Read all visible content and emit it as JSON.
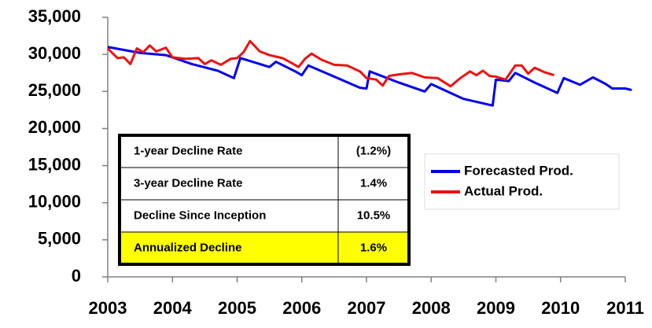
{
  "chart_data": {
    "type": "line",
    "xlim": [
      2003,
      2011
    ],
    "xticks": [
      2003,
      2004,
      2005,
      2006,
      2007,
      2008,
      2009,
      2010,
      2011
    ],
    "ylim": [
      0,
      35000
    ],
    "yticks": [
      0,
      {
        "value": 5000,
        "label": "5,000"
      },
      {
        "value": 10000,
        "label": "10,000"
      },
      {
        "value": 15000,
        "label": "15,000"
      },
      {
        "value": 20000,
        "label": "20,000"
      },
      {
        "value": 25000,
        "label": "25,000"
      },
      {
        "value": 30000,
        "label": "30,000"
      },
      {
        "value": 35000,
        "label": "35,000"
      }
    ],
    "grid": false,
    "legend": "right",
    "series": [
      {
        "name": "Forecasted Prod.",
        "color": "#0000ee",
        "x": [
          2003.0,
          2003.5,
          2003.9,
          2004.3,
          2004.7,
          2004.95,
          2005.05,
          2005.5,
          2005.6,
          2005.9,
          2006.0,
          2006.1,
          2006.5,
          2006.9,
          2007.0,
          2007.05,
          2007.5,
          2007.9,
          2008.0,
          2008.5,
          2008.95,
          2009.0,
          2009.2,
          2009.3,
          2009.6,
          2009.95,
          2010.05,
          2010.3,
          2010.5,
          2010.7,
          2010.8,
          2011.0,
          2011.1
        ],
        "values": [
          31000,
          30200,
          29900,
          28700,
          27800,
          26800,
          29500,
          28300,
          29000,
          27700,
          27200,
          28500,
          27000,
          25500,
          25400,
          27700,
          26200,
          25000,
          26000,
          24000,
          23100,
          26600,
          26400,
          27500,
          26200,
          24800,
          26800,
          25900,
          26900,
          26000,
          25400,
          25400,
          25200
        ]
      },
      {
        "name": "Actual Prod.",
        "color": "#ee1111",
        "x": [
          2003.0,
          2003.15,
          2003.25,
          2003.35,
          2003.45,
          2003.55,
          2003.65,
          2003.75,
          2003.9,
          2004.0,
          2004.2,
          2004.4,
          2004.5,
          2004.6,
          2004.75,
          2004.9,
          2005.0,
          2005.1,
          2005.2,
          2005.35,
          2005.5,
          2005.7,
          2005.85,
          2005.95,
          2006.05,
          2006.15,
          2006.3,
          2006.5,
          2006.7,
          2006.9,
          2007.0,
          2007.15,
          2007.25,
          2007.35,
          2007.5,
          2007.7,
          2007.9,
          2008.1,
          2008.3,
          2008.45,
          2008.6,
          2008.7,
          2008.8,
          2008.9,
          2009.0,
          2009.15,
          2009.3,
          2009.4,
          2009.5,
          2009.6,
          2009.75,
          2009.9
        ],
        "values": [
          30800,
          29500,
          29600,
          28700,
          30800,
          30300,
          31200,
          30400,
          30900,
          29600,
          29400,
          29500,
          28700,
          29200,
          28600,
          29400,
          29500,
          30300,
          31800,
          30400,
          29900,
          29500,
          28800,
          28300,
          29400,
          30100,
          29300,
          28600,
          28500,
          27700,
          26800,
          26600,
          25800,
          27100,
          27300,
          27500,
          26900,
          26800,
          25700,
          26800,
          27700,
          27200,
          27800,
          27100,
          27000,
          26600,
          28500,
          28500,
          27400,
          28200,
          27600,
          27200
        ]
      }
    ],
    "table": {
      "rows": [
        [
          "1-year Decline Rate",
          "(1.2%)"
        ],
        [
          "3-year Decline Rate",
          "1.4%"
        ],
        [
          "Decline Since Inception",
          "10.5%"
        ],
        [
          "Annualized Decline",
          "1.6%"
        ]
      ]
    }
  }
}
